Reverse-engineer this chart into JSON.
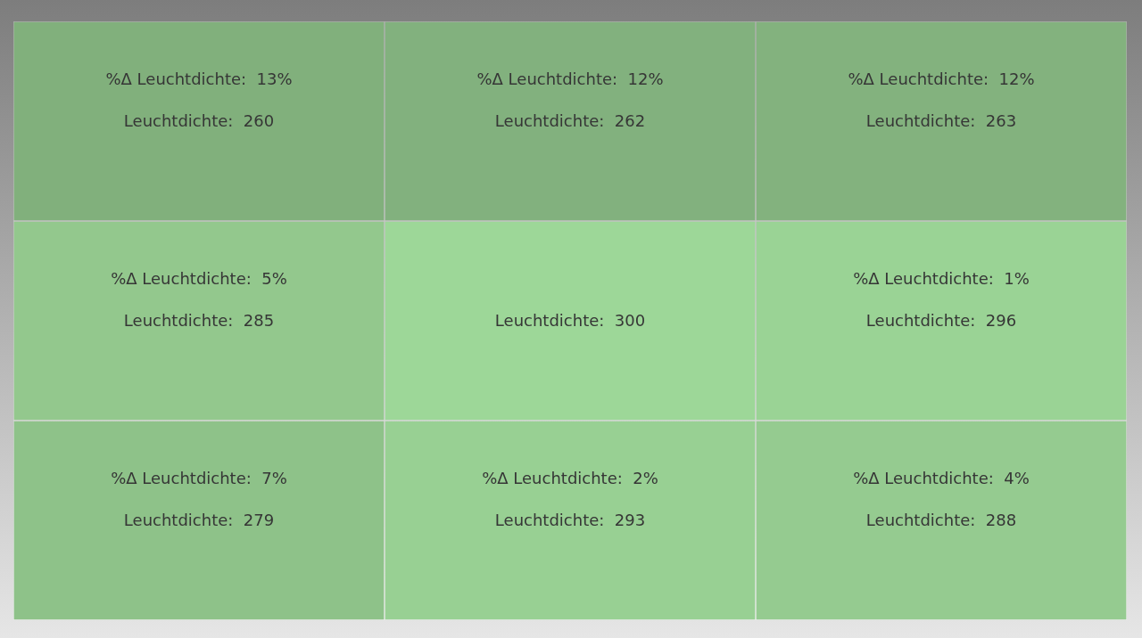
{
  "chart_data": {
    "type": "heatmap",
    "categories": [
      null,
      null,
      null
    ],
    "y_categories": [
      null,
      null,
      null
    ],
    "color": "#8fc38a",
    "cells": [
      [
        260,
        262,
        263
      ],
      [
        285,
        300,
        296
      ],
      [
        279,
        293,
        288
      ]
    ],
    "cell_labels": [
      [
        "Leuchtdichte:  260",
        "Leuchtdichte:  262",
        "Leuchtdichte:  263"
      ],
      [
        "Leuchtdichte:  285",
        "Leuchtdichte:  300",
        "Leuchtdichte:  296"
      ],
      [
        "Leuchtdichte:  279",
        "Leuchtdichte:  293",
        "Leuchtdichte:  288"
      ]
    ],
    "annotations": [
      "%Δ Leuchtdichte:  13%",
      "%Δ Leuchtdichte:  12%",
      "%Δ Leuchtdichte:  12%",
      "%Δ Leuchtdichte:  5%",
      "%Δ Leuchtdichte:  1%",
      "%Δ Leuchtdichte:  7%",
      "%Δ Leuchtdichte:  2%",
      "%Δ Leuchtdichte:  4%"
    ]
  }
}
